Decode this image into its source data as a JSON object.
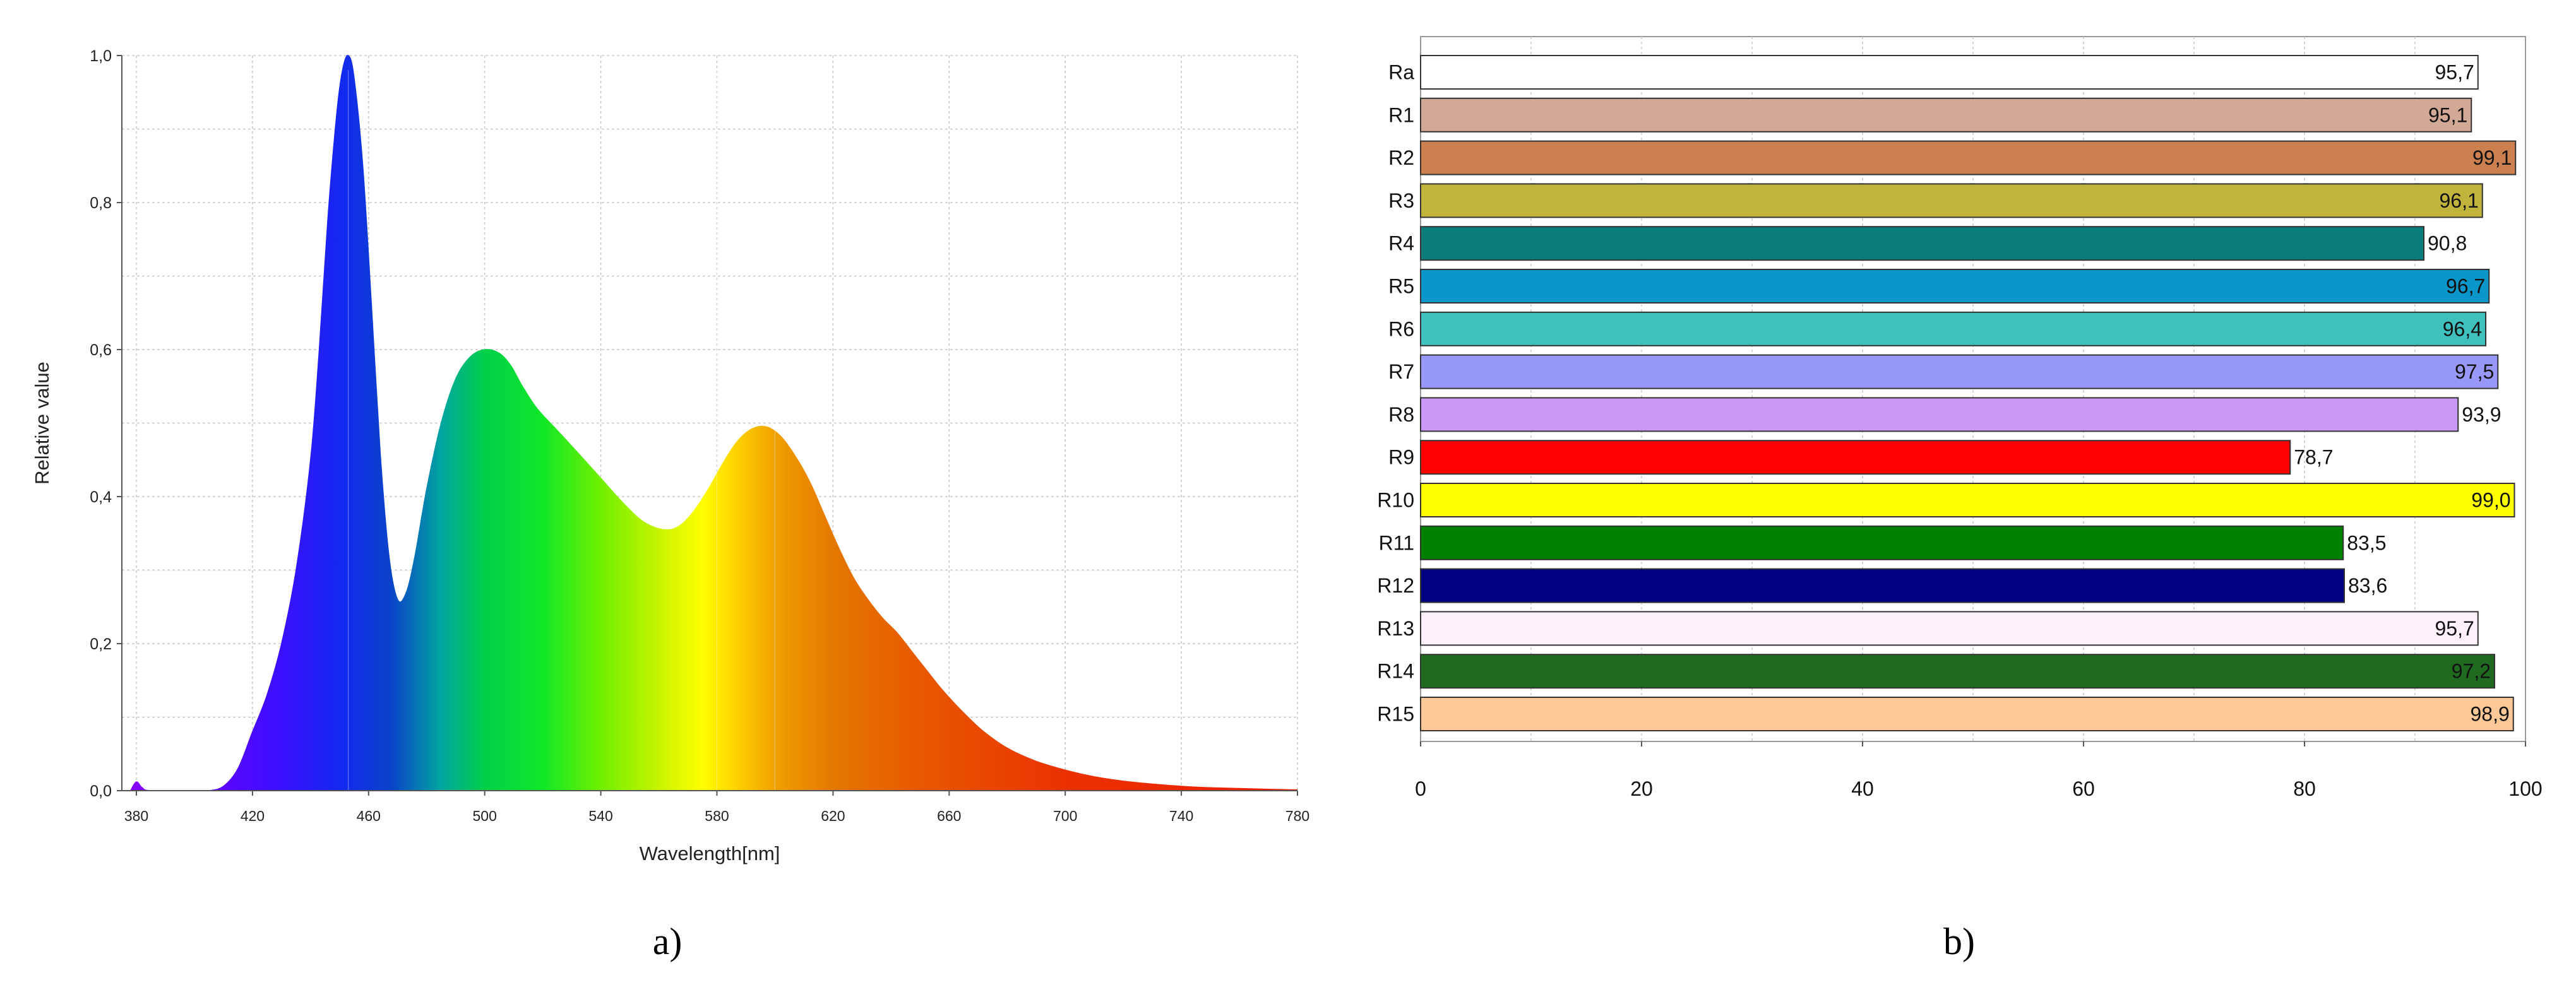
{
  "chart_data": [
    {
      "type": "area",
      "panel_label": "a)",
      "xlabel": "Wavelength[nm]",
      "ylabel": "Relative value",
      "xlim": [
        375,
        780
      ],
      "ylim": [
        0,
        1
      ],
      "xticks": [
        380,
        420,
        460,
        500,
        540,
        580,
        620,
        660,
        700,
        740,
        780
      ],
      "yticks": [
        0,
        0.2,
        0.4,
        0.6,
        0.8,
        1.0
      ],
      "ytick_labels": [
        "0,0",
        "0,2",
        "0,4",
        "0,6",
        "0,8",
        "1,0"
      ],
      "grid": true,
      "fill": "visible-spectrum gradient",
      "x": [
        378,
        380,
        382,
        385,
        400,
        405,
        410,
        415,
        420,
        425,
        430,
        435,
        440,
        443,
        446,
        449,
        451,
        453,
        455,
        458,
        461,
        464,
        467,
        470,
        473,
        476,
        480,
        485,
        490,
        495,
        500,
        505,
        509,
        513,
        518,
        525,
        532,
        540,
        548,
        555,
        562,
        567,
        572,
        577,
        582,
        587,
        592,
        597,
        602,
        607,
        612,
        617,
        622,
        627,
        632,
        637,
        642,
        647,
        652,
        657,
        662,
        667,
        672,
        680,
        690,
        700,
        710,
        720,
        730,
        740,
        750,
        760,
        770,
        780
      ],
      "y": [
        0.0,
        0.012,
        0.004,
        0.0,
        0.0,
        0.0,
        0.006,
        0.03,
        0.08,
        0.13,
        0.2,
        0.3,
        0.45,
        0.6,
        0.78,
        0.92,
        0.98,
        1.0,
        0.97,
        0.85,
        0.66,
        0.46,
        0.32,
        0.26,
        0.27,
        0.32,
        0.41,
        0.5,
        0.56,
        0.59,
        0.6,
        0.595,
        0.578,
        0.55,
        0.52,
        0.49,
        0.46,
        0.425,
        0.39,
        0.365,
        0.355,
        0.36,
        0.38,
        0.41,
        0.445,
        0.475,
        0.492,
        0.495,
        0.482,
        0.455,
        0.42,
        0.375,
        0.33,
        0.29,
        0.26,
        0.235,
        0.215,
        0.19,
        0.165,
        0.14,
        0.118,
        0.098,
        0.08,
        0.058,
        0.04,
        0.028,
        0.019,
        0.013,
        0.009,
        0.006,
        0.004,
        0.003,
        0.002,
        0.001
      ]
    },
    {
      "type": "bar",
      "orientation": "horizontal",
      "panel_label": "b)",
      "categories": [
        "Ra",
        "R1",
        "R2",
        "R3",
        "R4",
        "R5",
        "R6",
        "R7",
        "R8",
        "R9",
        "R10",
        "R11",
        "R12",
        "R13",
        "R14",
        "R15"
      ],
      "values": [
        95.7,
        95.1,
        99.1,
        96.1,
        90.8,
        96.7,
        96.4,
        97.5,
        93.9,
        78.7,
        99.0,
        83.5,
        83.6,
        95.7,
        97.2,
        98.9
      ],
      "value_labels": [
        "95,7",
        "95,1",
        "99,1",
        "96,1",
        "90,8",
        "96,7",
        "96,4",
        "97,5",
        "93,9",
        "78,7",
        "99,0",
        "83,5",
        "83,6",
        "95,7",
        "97,2",
        "98,9"
      ],
      "colors": [
        "#ffffff",
        "#d2a896",
        "#cc8050",
        "#c0b43c",
        "#0a7c7c",
        "#0a96c8",
        "#40c0bc",
        "#9898f8",
        "#c898f4",
        "#ff0000",
        "#ffff00",
        "#008000",
        "#000080",
        "#fff0fc",
        "#206a20",
        "#ffc898"
      ],
      "label_inside": [
        true,
        true,
        true,
        true,
        false,
        true,
        true,
        true,
        false,
        false,
        true,
        false,
        false,
        true,
        true,
        true
      ],
      "xlim": [
        0,
        100
      ],
      "xticks": [
        0,
        20,
        40,
        60,
        80,
        100
      ],
      "grid": true
    }
  ]
}
